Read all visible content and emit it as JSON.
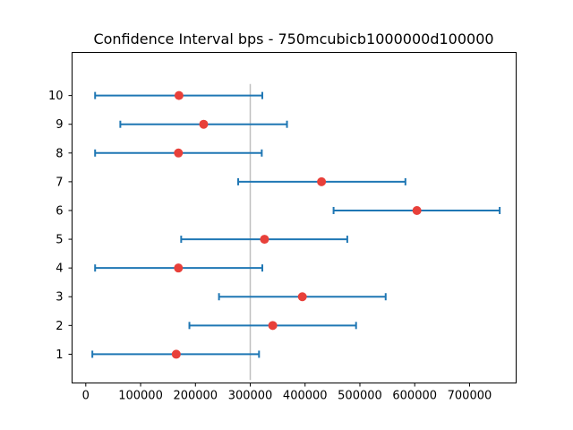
{
  "chart_data": {
    "type": "errorbar",
    "title": "Confidence Interval bps - 750mcubicb1000000d100000",
    "xlabel": "",
    "ylabel": "",
    "xlim": [
      -25000,
      785000
    ],
    "ylim": [
      0,
      11.5
    ],
    "x_ticks": [
      0,
      100000,
      200000,
      300000,
      400000,
      500000,
      600000,
      700000
    ],
    "x_tick_labels": [
      "0",
      "100000",
      "200000",
      "300000",
      "400000",
      "500000",
      "600000",
      "700000"
    ],
    "y_ticks": [
      1,
      2,
      3,
      4,
      5,
      6,
      7,
      8,
      9,
      10
    ],
    "y_tick_labels": [
      "1",
      "2",
      "3",
      "4",
      "5",
      "6",
      "7",
      "8",
      "9",
      "10"
    ],
    "reference_line": {
      "x": 300000,
      "y_range": [
        0.1,
        10.4
      ],
      "color": "#c0c0c0"
    },
    "intervals": [
      {
        "y": 1,
        "low": 12000,
        "center": 165000,
        "high": 316000
      },
      {
        "y": 2,
        "low": 189000,
        "center": 341000,
        "high": 493000
      },
      {
        "y": 3,
        "low": 243000,
        "center": 395000,
        "high": 547000
      },
      {
        "y": 4,
        "low": 17000,
        "center": 169000,
        "high": 322000
      },
      {
        "y": 5,
        "low": 174000,
        "center": 326000,
        "high": 477000
      },
      {
        "y": 6,
        "low": 452000,
        "center": 604000,
        "high": 755000
      },
      {
        "y": 7,
        "low": 278000,
        "center": 430000,
        "high": 583000
      },
      {
        "y": 8,
        "low": 17000,
        "center": 169000,
        "high": 321000
      },
      {
        "y": 9,
        "low": 63000,
        "center": 215000,
        "high": 367000
      },
      {
        "y": 10,
        "low": 17000,
        "center": 170000,
        "high": 322000
      }
    ],
    "grid": false,
    "legend": "none",
    "colors": {
      "errorbar": "#1f77b4",
      "point": "#e8403a",
      "reference": "#c0c0c0"
    }
  }
}
